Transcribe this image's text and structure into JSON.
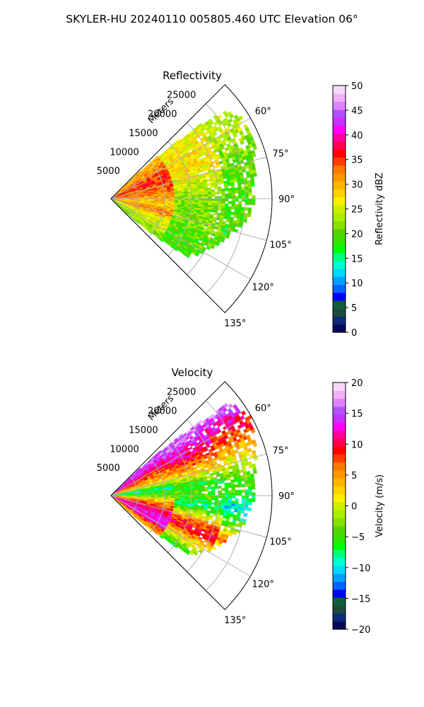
{
  "suptitle": "SKYLER-HU  20240110  005805.460 UTC Elevation 06°",
  "chart_data": [
    {
      "type": "polar-sector",
      "title": "Reflectivity",
      "range_axis_label": "Meters",
      "range_ticks": [
        5000,
        10000,
        15000,
        20000,
        25000
      ],
      "range_tick_labels": [
        "5000",
        "10000",
        "15000",
        "20000",
        "25000"
      ],
      "azimuth_range_deg": [
        45,
        135
      ],
      "azimuth_ticks_deg": [
        60,
        75,
        90,
        105,
        120,
        135
      ],
      "azimuth_tick_labels": [
        "60°",
        "75°",
        "90°",
        "105°",
        "120°",
        "135°"
      ],
      "max_range_m": 30000,
      "grid": true,
      "colorbar": {
        "label": "Reflectivity dBZ",
        "vmin": 0,
        "vmax": 50,
        "ticks": [
          0,
          5,
          10,
          15,
          20,
          25,
          30,
          35,
          40,
          45,
          50
        ],
        "colormap": [
          "#06075c",
          "#0a2a7a",
          "#1a4a3a",
          "#0d5f38",
          "#0000ff",
          "#0064ff",
          "#00a0ff",
          "#00d8ff",
          "#00ffd0",
          "#00ff80",
          "#00ff00",
          "#33e400",
          "#55d400",
          "#88e000",
          "#aaee00",
          "#ccee00",
          "#ffee00",
          "#ffd200",
          "#ffb400",
          "#ff9600",
          "#ff7800",
          "#ff3c00",
          "#ff0000",
          "#ff0050",
          "#ff00a0",
          "#ff00ff",
          "#c830ff",
          "#b450ff",
          "#e080ff",
          "#f0b0f8",
          "#f8d8f8"
        ]
      },
      "field_profile": {
        "azimuth_deg": [
          45,
          52,
          60,
          67,
          75,
          82,
          90,
          97,
          105,
          112,
          120,
          127,
          135
        ],
        "near_range_dbz": [
          null,
          30,
          33,
          36,
          34,
          33,
          30,
          28,
          33,
          26,
          25,
          22,
          22
        ],
        "mid_range_dbz": [
          null,
          26,
          27,
          28,
          26,
          24,
          22,
          21,
          22,
          20,
          20,
          19,
          18
        ],
        "far_range_dbz": [
          null,
          24,
          24,
          22,
          21,
          20,
          20,
          19,
          19,
          18,
          18,
          18,
          null
        ],
        "data_range_km_max": [
          0,
          27,
          29,
          29,
          28,
          27,
          27,
          26,
          24,
          22,
          20,
          18,
          0
        ]
      }
    },
    {
      "type": "polar-sector",
      "title": "Velocity",
      "range_axis_label": "Meters",
      "range_ticks": [
        5000,
        10000,
        15000,
        20000,
        25000
      ],
      "range_tick_labels": [
        "5000",
        "10000",
        "15000",
        "20000",
        "25000"
      ],
      "azimuth_range_deg": [
        45,
        135
      ],
      "azimuth_ticks_deg": [
        60,
        75,
        90,
        105,
        120,
        135
      ],
      "azimuth_tick_labels": [
        "60°",
        "75°",
        "90°",
        "105°",
        "120°",
        "135°"
      ],
      "max_range_m": 30000,
      "grid": true,
      "colorbar": {
        "label": "Velocity (m/s)",
        "vmin": -20,
        "vmax": 20,
        "ticks": [
          -20,
          -15,
          -10,
          -5,
          0,
          5,
          10,
          15,
          20
        ],
        "colormap": [
          "#06075c",
          "#0a2a7a",
          "#1a4a3a",
          "#0d5f38",
          "#0000ff",
          "#0064ff",
          "#00a0ff",
          "#00d8ff",
          "#00ffd0",
          "#00ff80",
          "#00ff00",
          "#33e400",
          "#55d400",
          "#88e000",
          "#aaee00",
          "#ccee00",
          "#ffee00",
          "#ffd200",
          "#ffb400",
          "#ff9600",
          "#ff7800",
          "#ff3c00",
          "#ff0000",
          "#ff0050",
          "#ff00a0",
          "#ff00ff",
          "#c830ff",
          "#b450ff",
          "#e080ff",
          "#f0b0f8",
          "#f8d8f8"
        ]
      },
      "field_profile": {
        "azimuth_deg": [
          45,
          52,
          60,
          67,
          75,
          82,
          90,
          97,
          105,
          112,
          120,
          127,
          135
        ],
        "near_range_ms": [
          null,
          14,
          10,
          6,
          2,
          -8,
          -4,
          4,
          10,
          12,
          14,
          6,
          2
        ],
        "mid_range_ms": [
          null,
          16,
          12,
          8,
          2,
          -6,
          -4,
          -8,
          4,
          10,
          2,
          -4,
          -10
        ],
        "far_range_ms": [
          null,
          16,
          10,
          6,
          0,
          -4,
          -6,
          -10,
          -2,
          6,
          -4,
          -8,
          null
        ],
        "data_range_km_max": [
          0,
          28,
          30,
          29,
          28,
          27,
          27,
          26,
          25,
          23,
          21,
          18,
          0
        ]
      }
    }
  ]
}
